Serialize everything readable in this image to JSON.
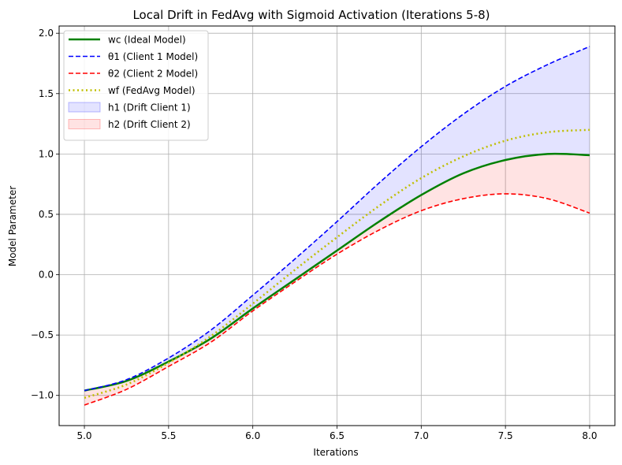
{
  "chart_data": {
    "type": "line",
    "title": "Local Drift in FedAvg with Sigmoid Activation (Iterations 5-8)",
    "xlabel": "Iterations",
    "ylabel": "Model Parameter",
    "xlim": [
      4.85,
      8.15
    ],
    "ylim": [
      -1.25,
      2.06
    ],
    "xticks": [
      5.0,
      5.5,
      6.0,
      6.5,
      7.0,
      7.5,
      8.0
    ],
    "xtick_labels": [
      "5.0",
      "5.5",
      "6.0",
      "6.5",
      "7.0",
      "7.5",
      "8.0"
    ],
    "yticks": [
      -1.0,
      -0.5,
      0.0,
      0.5,
      1.0,
      1.5,
      2.0
    ],
    "ytick_labels": [
      "−1.0",
      "−0.5",
      "0.0",
      "0.5",
      "1.0",
      "1.5",
      "2.0"
    ],
    "grid": true,
    "legend_position": "upper-left",
    "x": [
      5.0,
      5.25,
      5.5,
      5.75,
      6.0,
      6.25,
      6.5,
      6.75,
      7.0,
      7.25,
      7.5,
      7.75,
      8.0
    ],
    "series": [
      {
        "name": "wc (Ideal Model)",
        "color": "#008000",
        "dash": "solid",
        "width": 2.5,
        "values": [
          -0.96,
          -0.88,
          -0.72,
          -0.53,
          -0.28,
          -0.04,
          0.2,
          0.44,
          0.66,
          0.84,
          0.95,
          1.0,
          0.99
        ]
      },
      {
        "name": "θ1 (Client 1 Model)",
        "color": "#0000ff",
        "dash": "dashed",
        "width": 1.6,
        "values": [
          -0.96,
          -0.87,
          -0.69,
          -0.46,
          -0.17,
          0.13,
          0.44,
          0.76,
          1.06,
          1.33,
          1.56,
          1.74,
          1.89
        ]
      },
      {
        "name": "θ2 (Client 2 Model)",
        "color": "#ff0000",
        "dash": "dashed",
        "width": 1.6,
        "values": [
          -1.08,
          -0.95,
          -0.76,
          -0.56,
          -0.3,
          -0.06,
          0.17,
          0.37,
          0.53,
          0.63,
          0.67,
          0.63,
          0.51
        ]
      },
      {
        "name": "wf (FedAvg Model)",
        "color": "#bfbf00",
        "dash": "dotted",
        "width": 2.5,
        "values": [
          -1.02,
          -0.91,
          -0.73,
          -0.51,
          -0.24,
          0.04,
          0.31,
          0.57,
          0.8,
          0.98,
          1.11,
          1.18,
          1.2
        ]
      }
    ],
    "fills": [
      {
        "name": "h1 (Drift Client 1)",
        "color": "#0000ff",
        "opacity": 0.11,
        "between": [
          "wc (Ideal Model)",
          "θ1 (Client 1 Model)"
        ]
      },
      {
        "name": "h2 (Drift Client 2)",
        "color": "#ff0000",
        "opacity": 0.11,
        "between": [
          "wc (Ideal Model)",
          "θ2 (Client 2 Model)"
        ]
      }
    ]
  }
}
